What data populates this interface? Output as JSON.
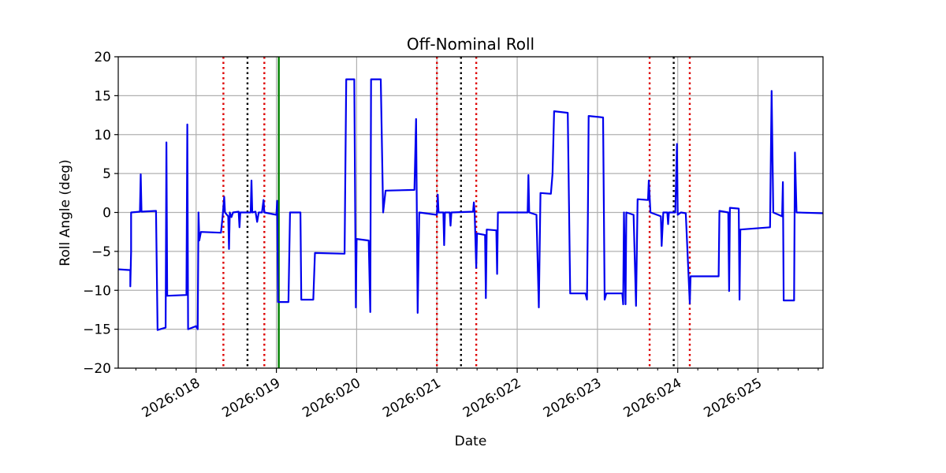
{
  "chart_data": {
    "type": "line",
    "title": "Off-Nominal Roll",
    "xlabel": "Date",
    "ylabel": "Roll Angle (deg)",
    "xlim": [
      17.03,
      25.81
    ],
    "ylim": [
      -20,
      20
    ],
    "grid": true,
    "x_ticks": [
      {
        "value": 18,
        "label": "2026:018"
      },
      {
        "value": 19,
        "label": "2026:019"
      },
      {
        "value": 20,
        "label": "2026:020"
      },
      {
        "value": 21,
        "label": "2026:021"
      },
      {
        "value": 22,
        "label": "2026:022"
      },
      {
        "value": 23,
        "label": "2026:023"
      },
      {
        "value": 24,
        "label": "2026:024"
      },
      {
        "value": 25,
        "label": "2026:025"
      }
    ],
    "y_ticks": [
      {
        "value": 20,
        "label": "20"
      },
      {
        "value": 15,
        "label": "15"
      },
      {
        "value": 10,
        "label": "10"
      },
      {
        "value": 5,
        "label": "5"
      },
      {
        "value": 0,
        "label": "0"
      },
      {
        "value": -5,
        "label": "−5"
      },
      {
        "value": -10,
        "label": "−10"
      },
      {
        "value": -15,
        "label": "−15"
      },
      {
        "value": -20,
        "label": "−20"
      }
    ],
    "vlines": [
      {
        "x": 18.34,
        "style": "dotted",
        "color": "#dd0000"
      },
      {
        "x": 18.64,
        "style": "dotted",
        "color": "#000000"
      },
      {
        "x": 18.85,
        "style": "dotted",
        "color": "#dd0000"
      },
      {
        "x": 19.03,
        "style": "solid",
        "color": "#008000"
      },
      {
        "x": 21.0,
        "style": "dotted",
        "color": "#dd0000"
      },
      {
        "x": 21.3,
        "style": "dotted",
        "color": "#000000"
      },
      {
        "x": 21.49,
        "style": "dotted",
        "color": "#dd0000"
      },
      {
        "x": 23.65,
        "style": "dotted",
        "color": "#dd0000"
      },
      {
        "x": 23.95,
        "style": "dotted",
        "color": "#000000"
      },
      {
        "x": 24.15,
        "style": "dotted",
        "color": "#dd0000"
      }
    ],
    "series": [
      {
        "name": "Roll",
        "color": "#0000ee",
        "points": [
          [
            17.03,
            -7.3
          ],
          [
            17.18,
            -7.4
          ],
          [
            17.18,
            -9.5
          ],
          [
            17.19,
            -5.0
          ],
          [
            17.19,
            0.0
          ],
          [
            17.3,
            0.1
          ],
          [
            17.31,
            4.9
          ],
          [
            17.32,
            0.1
          ],
          [
            17.5,
            0.2
          ],
          [
            17.52,
            -15.1
          ],
          [
            17.62,
            -14.8
          ],
          [
            17.63,
            9.0
          ],
          [
            17.64,
            -10.7
          ],
          [
            17.88,
            -10.6
          ],
          [
            17.89,
            11.3
          ],
          [
            17.9,
            -15.0
          ],
          [
            18.0,
            -14.6
          ],
          [
            18.02,
            -15.0
          ],
          [
            18.03,
            0.0
          ],
          [
            18.04,
            -3.6
          ],
          [
            18.06,
            -2.5
          ],
          [
            18.31,
            -2.6
          ],
          [
            18.33,
            -0.5
          ],
          [
            18.35,
            2.0
          ],
          [
            18.36,
            0.0
          ],
          [
            18.4,
            -0.5
          ],
          [
            18.41,
            -4.7
          ],
          [
            18.42,
            0.0
          ],
          [
            18.44,
            -0.6
          ],
          [
            18.46,
            0.0
          ],
          [
            18.53,
            0.1
          ],
          [
            18.54,
            -1.9
          ],
          [
            18.55,
            0.0
          ],
          [
            18.68,
            0.0
          ],
          [
            18.69,
            4.1
          ],
          [
            18.7,
            0.0
          ],
          [
            18.74,
            0.1
          ],
          [
            18.76,
            -1.2
          ],
          [
            18.78,
            0.0
          ],
          [
            18.82,
            0.0
          ],
          [
            18.84,
            1.6
          ],
          [
            18.85,
            0.0
          ],
          [
            19.0,
            -0.3
          ],
          [
            19.01,
            1.5
          ],
          [
            19.02,
            -11.5
          ],
          [
            19.15,
            -11.5
          ],
          [
            19.17,
            0.0
          ],
          [
            19.3,
            0.0
          ],
          [
            19.31,
            -11.2
          ],
          [
            19.46,
            -11.2
          ],
          [
            19.48,
            -5.2
          ],
          [
            19.85,
            -5.3
          ],
          [
            19.87,
            17.1
          ],
          [
            19.97,
            17.1
          ],
          [
            19.99,
            -12.2
          ],
          [
            20.0,
            -3.4
          ],
          [
            20.15,
            -3.6
          ],
          [
            20.17,
            -12.8
          ],
          [
            20.18,
            17.1
          ],
          [
            20.3,
            17.1
          ],
          [
            20.33,
            0.0
          ],
          [
            20.36,
            2.8
          ],
          [
            20.72,
            2.9
          ],
          [
            20.74,
            12.0
          ],
          [
            20.76,
            -12.9
          ],
          [
            20.78,
            0.0
          ],
          [
            21.0,
            -0.3
          ],
          [
            21.01,
            2.3
          ],
          [
            21.02,
            0.0
          ],
          [
            21.08,
            0.0
          ],
          [
            21.09,
            -4.2
          ],
          [
            21.1,
            0.0
          ],
          [
            21.16,
            0.0
          ],
          [
            21.17,
            -1.7
          ],
          [
            21.18,
            0.0
          ],
          [
            21.45,
            0.1
          ],
          [
            21.46,
            1.3
          ],
          [
            21.47,
            0.0
          ],
          [
            21.49,
            -7.1
          ],
          [
            21.5,
            -2.7
          ],
          [
            21.6,
            -2.9
          ],
          [
            21.61,
            -11.0
          ],
          [
            21.62,
            -2.2
          ],
          [
            21.74,
            -2.3
          ],
          [
            21.75,
            -7.9
          ],
          [
            21.76,
            0.0
          ],
          [
            22.13,
            0.0
          ],
          [
            22.14,
            4.8
          ],
          [
            22.15,
            0.0
          ],
          [
            22.24,
            -0.3
          ],
          [
            22.27,
            -12.2
          ],
          [
            22.29,
            2.5
          ],
          [
            22.42,
            2.4
          ],
          [
            22.44,
            5.0
          ],
          [
            22.46,
            13.0
          ],
          [
            22.63,
            12.8
          ],
          [
            22.66,
            -10.4
          ],
          [
            22.85,
            -10.4
          ],
          [
            22.87,
            -11.2
          ],
          [
            22.88,
            -0.8
          ],
          [
            22.89,
            12.4
          ],
          [
            23.07,
            12.2
          ],
          [
            23.09,
            -11.2
          ],
          [
            23.11,
            -10.4
          ],
          [
            23.31,
            -10.4
          ],
          [
            23.32,
            -11.8
          ],
          [
            23.33,
            0.0
          ],
          [
            23.35,
            -11.8
          ],
          [
            23.36,
            0.0
          ],
          [
            23.45,
            -0.3
          ],
          [
            23.48,
            -12.0
          ],
          [
            23.5,
            1.7
          ],
          [
            23.63,
            1.6
          ],
          [
            23.64,
            4.1
          ],
          [
            23.66,
            0.0
          ],
          [
            23.79,
            -0.5
          ],
          [
            23.8,
            -4.3
          ],
          [
            23.82,
            0.0
          ],
          [
            23.87,
            0.0
          ],
          [
            23.88,
            -1.5
          ],
          [
            23.89,
            0.0
          ],
          [
            23.97,
            0.0
          ],
          [
            23.99,
            8.8
          ],
          [
            24.0,
            -0.3
          ],
          [
            24.04,
            0.0
          ],
          [
            24.1,
            -0.1
          ],
          [
            24.15,
            -11.7
          ],
          [
            24.16,
            -8.2
          ],
          [
            24.51,
            -8.2
          ],
          [
            24.52,
            0.2
          ],
          [
            24.63,
            0.0
          ],
          [
            24.64,
            -10.1
          ],
          [
            24.65,
            0.6
          ],
          [
            24.76,
            0.5
          ],
          [
            24.77,
            -11.2
          ],
          [
            24.78,
            -2.2
          ],
          [
            25.15,
            -1.9
          ],
          [
            25.17,
            15.6
          ],
          [
            25.19,
            0.0
          ],
          [
            25.3,
            -0.5
          ],
          [
            25.31,
            3.9
          ],
          [
            25.32,
            -11.3
          ],
          [
            25.45,
            -11.3
          ],
          [
            25.46,
            7.7
          ],
          [
            25.48,
            0.0
          ],
          [
            25.81,
            -0.1
          ]
        ]
      }
    ]
  }
}
